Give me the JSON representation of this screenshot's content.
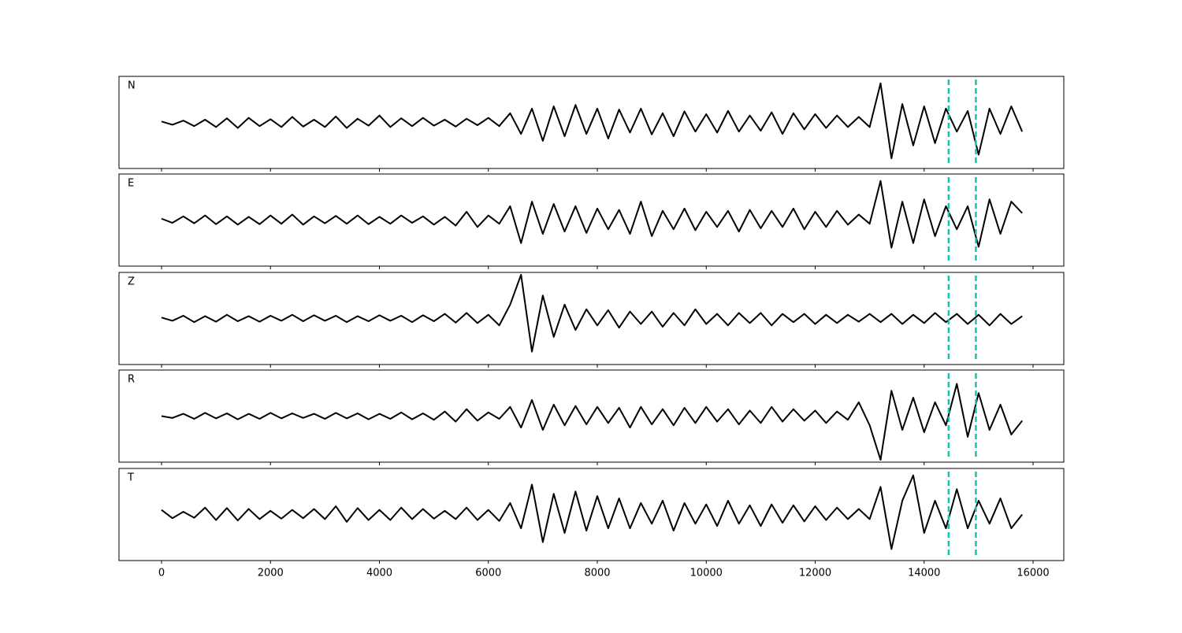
{
  "chart_data": {
    "type": "line",
    "layout": "stacked",
    "x": [
      0,
      200,
      400,
      600,
      800,
      1000,
      1200,
      1400,
      1600,
      1800,
      2000,
      2200,
      2400,
      2600,
      2800,
      3000,
      3200,
      3400,
      3600,
      3800,
      4000,
      4200,
      4400,
      4600,
      4800,
      5000,
      5200,
      5400,
      5600,
      5800,
      6000,
      6200,
      6400,
      6600,
      6800,
      7000,
      7200,
      7400,
      7600,
      7800,
      8000,
      8200,
      8400,
      8600,
      8800,
      9000,
      9200,
      9400,
      9600,
      9800,
      10000,
      10200,
      10400,
      10600,
      10800,
      11000,
      11200,
      11400,
      11600,
      11800,
      12000,
      12200,
      12400,
      12600,
      12800,
      13000,
      13200,
      13400,
      13600,
      13800,
      14000,
      14200,
      14400,
      14600,
      14800,
      15000,
      15200,
      15400,
      15600,
      15800
    ],
    "series": [
      {
        "name": "N",
        "color": "#000000",
        "values": [
          0.02,
          -0.05,
          0.04,
          -0.08,
          0.06,
          -0.1,
          0.09,
          -0.12,
          0.1,
          -0.08,
          0.07,
          -0.1,
          0.12,
          -0.09,
          0.06,
          -0.1,
          0.13,
          -0.12,
          0.08,
          -0.07,
          0.15,
          -0.1,
          0.09,
          -0.08,
          0.1,
          -0.07,
          0.06,
          -0.09,
          0.08,
          -0.06,
          0.1,
          -0.08,
          0.2,
          -0.25,
          0.3,
          -0.4,
          0.35,
          -0.3,
          0.38,
          -0.25,
          0.3,
          -0.35,
          0.28,
          -0.22,
          0.3,
          -0.26,
          0.2,
          -0.3,
          0.24,
          -0.2,
          0.18,
          -0.22,
          0.25,
          -0.2,
          0.15,
          -0.18,
          0.22,
          -0.25,
          0.2,
          -0.15,
          0.18,
          -0.12,
          0.15,
          -0.1,
          0.12,
          -0.1,
          0.85,
          -0.78,
          0.4,
          -0.5,
          0.35,
          -0.45,
          0.3,
          -0.2,
          0.25,
          -0.7,
          0.3,
          -0.25,
          0.35,
          -0.2
        ]
      },
      {
        "name": "E",
        "color": "#000000",
        "values": [
          0.03,
          -0.06,
          0.08,
          -0.07,
          0.1,
          -0.09,
          0.08,
          -0.1,
          0.07,
          -0.09,
          0.1,
          -0.08,
          0.12,
          -0.1,
          0.08,
          -0.07,
          0.09,
          -0.08,
          0.1,
          -0.09,
          0.07,
          -0.08,
          0.1,
          -0.06,
          0.08,
          -0.1,
          0.07,
          -0.12,
          0.18,
          -0.15,
          0.1,
          -0.08,
          0.3,
          -0.5,
          0.4,
          -0.3,
          0.35,
          -0.25,
          0.3,
          -0.28,
          0.25,
          -0.2,
          0.22,
          -0.3,
          0.4,
          -0.35,
          0.2,
          -0.2,
          0.25,
          -0.22,
          0.18,
          -0.15,
          0.2,
          -0.25,
          0.22,
          -0.18,
          0.2,
          -0.15,
          0.25,
          -0.2,
          0.18,
          -0.15,
          0.2,
          -0.1,
          0.12,
          -0.08,
          0.85,
          -0.6,
          0.4,
          -0.5,
          0.45,
          -0.35,
          0.3,
          -0.2,
          0.3,
          -0.58,
          0.45,
          -0.3,
          0.4,
          0.15
        ]
      },
      {
        "name": "Z",
        "color": "#000000",
        "values": [
          0.02,
          -0.05,
          0.06,
          -0.08,
          0.05,
          -0.07,
          0.08,
          -0.06,
          0.05,
          -0.07,
          0.06,
          -0.05,
          0.08,
          -0.06,
          0.07,
          -0.05,
          0.06,
          -0.08,
          0.05,
          -0.06,
          0.07,
          -0.05,
          0.06,
          -0.08,
          0.07,
          -0.06,
          0.1,
          -0.09,
          0.12,
          -0.1,
          0.08,
          -0.15,
          0.3,
          0.95,
          -0.72,
          0.5,
          -0.4,
          0.3,
          -0.25,
          0.2,
          -0.15,
          0.18,
          -0.2,
          0.15,
          -0.12,
          0.15,
          -0.18,
          0.12,
          -0.15,
          0.2,
          -0.12,
          0.1,
          -0.15,
          0.12,
          -0.1,
          0.12,
          -0.15,
          0.1,
          -0.08,
          0.1,
          -0.12,
          0.08,
          -0.1,
          0.08,
          -0.07,
          0.1,
          -0.08,
          0.1,
          -0.12,
          0.08,
          -0.1,
          0.12,
          -0.08,
          0.1,
          -0.12,
          0.08,
          -0.15,
          0.1,
          -0.12,
          0.05
        ]
      },
      {
        "name": "R",
        "color": "#000000",
        "values": [
          0.0,
          -0.04,
          0.05,
          -0.06,
          0.07,
          -0.05,
          0.06,
          -0.07,
          0.05,
          -0.06,
          0.07,
          -0.05,
          0.06,
          -0.04,
          0.05,
          -0.06,
          0.07,
          -0.05,
          0.06,
          -0.07,
          0.05,
          -0.06,
          0.08,
          -0.07,
          0.06,
          -0.08,
          0.1,
          -0.12,
          0.15,
          -0.1,
          0.08,
          -0.06,
          0.2,
          -0.25,
          0.35,
          -0.3,
          0.25,
          -0.2,
          0.22,
          -0.18,
          0.2,
          -0.15,
          0.18,
          -0.25,
          0.2,
          -0.18,
          0.15,
          -0.2,
          0.18,
          -0.15,
          0.2,
          -0.12,
          0.15,
          -0.18,
          0.12,
          -0.15,
          0.2,
          -0.12,
          0.15,
          -0.1,
          0.12,
          -0.15,
          0.1,
          -0.08,
          0.3,
          -0.2,
          -0.95,
          0.55,
          -0.3,
          0.4,
          -0.35,
          0.3,
          -0.2,
          0.7,
          -0.45,
          0.5,
          -0.3,
          0.25,
          -0.4,
          -0.1
        ]
      },
      {
        "name": "T",
        "color": "#000000",
        "values": [
          0.1,
          -0.08,
          0.06,
          -0.07,
          0.15,
          -0.12,
          0.14,
          -0.13,
          0.12,
          -0.1,
          0.08,
          -0.09,
          0.1,
          -0.08,
          0.12,
          -0.1,
          0.18,
          -0.16,
          0.14,
          -0.12,
          0.1,
          -0.12,
          0.15,
          -0.1,
          0.12,
          -0.09,
          0.08,
          -0.1,
          0.15,
          -0.12,
          0.1,
          -0.14,
          0.25,
          -0.3,
          0.65,
          -0.6,
          0.45,
          -0.4,
          0.5,
          -0.35,
          0.4,
          -0.3,
          0.35,
          -0.3,
          0.25,
          -0.2,
          0.3,
          -0.35,
          0.25,
          -0.2,
          0.22,
          -0.25,
          0.3,
          -0.2,
          0.2,
          -0.25,
          0.22,
          -0.18,
          0.2,
          -0.15,
          0.18,
          -0.12,
          0.15,
          -0.1,
          0.12,
          -0.1,
          0.6,
          -0.75,
          0.3,
          0.85,
          -0.4,
          0.3,
          -0.3,
          0.55,
          -0.3,
          0.3,
          -0.2,
          0.35,
          -0.3,
          0.0
        ]
      }
    ],
    "xlim": [
      -781,
      16564
    ],
    "xticks": [
      0,
      2000,
      4000,
      6000,
      8000,
      10000,
      12000,
      14000,
      16000
    ],
    "ylim": [
      -1,
      1
    ],
    "vlines": [
      14450,
      14950
    ],
    "vline_color": "#17c3b2"
  }
}
